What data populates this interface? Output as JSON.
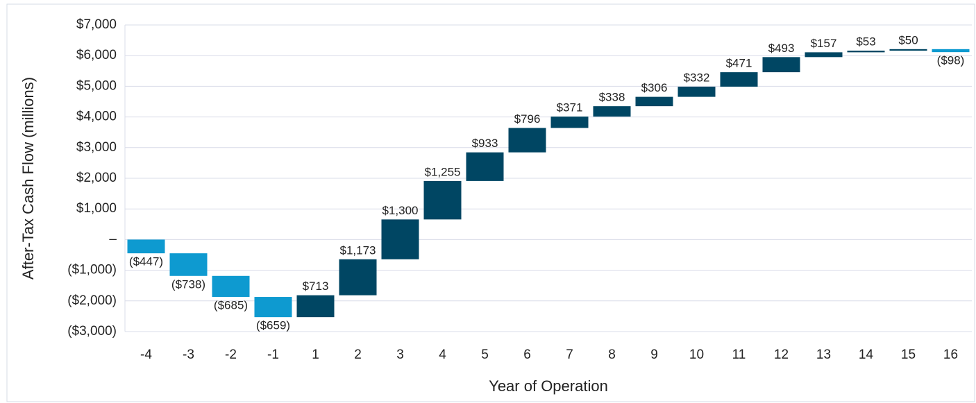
{
  "chart_data": {
    "type": "waterfall",
    "y_label": "After-Tax Cash Flow (millions)",
    "x_label": "Year of Operation",
    "categories": [
      "-4",
      "-3",
      "-2",
      "-1",
      "1",
      "2",
      "3",
      "4",
      "5",
      "6",
      "7",
      "8",
      "9",
      "10",
      "11",
      "12",
      "13",
      "14",
      "15",
      "16"
    ],
    "values": [
      -447,
      -738,
      -685,
      -659,
      713,
      1173,
      1300,
      1255,
      933,
      796,
      371,
      338,
      306,
      332,
      471,
      493,
      157,
      53,
      50,
      -98
    ],
    "value_labels": [
      "($447)",
      "($738)",
      "($685)",
      "($659)",
      "$713",
      "$1,173",
      "$1,300",
      "$1,255",
      "$933",
      "$796",
      "$371",
      "$338",
      "$306",
      "$332",
      "$471",
      "$493",
      "$157",
      "$53",
      "$50",
      "($98)"
    ],
    "positive_color": "#004663",
    "negative_color": "#0e9ad0",
    "ylim": [
      -3000,
      7000
    ],
    "yticks": [
      {
        "value": 7000,
        "label": "$7,000"
      },
      {
        "value": 6000,
        "label": "$6,000"
      },
      {
        "value": 5000,
        "label": "$5,000"
      },
      {
        "value": 4000,
        "label": "$4,000"
      },
      {
        "value": 3000,
        "label": "$3,000"
      },
      {
        "value": 2000,
        "label": "$2,000"
      },
      {
        "value": 1000,
        "label": "$1,000"
      },
      {
        "value": 0,
        "label": "–"
      },
      {
        "value": -1000,
        "label": "($1,000)"
      },
      {
        "value": -2000,
        "label": "($2,000)"
      },
      {
        "value": -3000,
        "label": "($3,000)"
      }
    ],
    "grid": true
  }
}
